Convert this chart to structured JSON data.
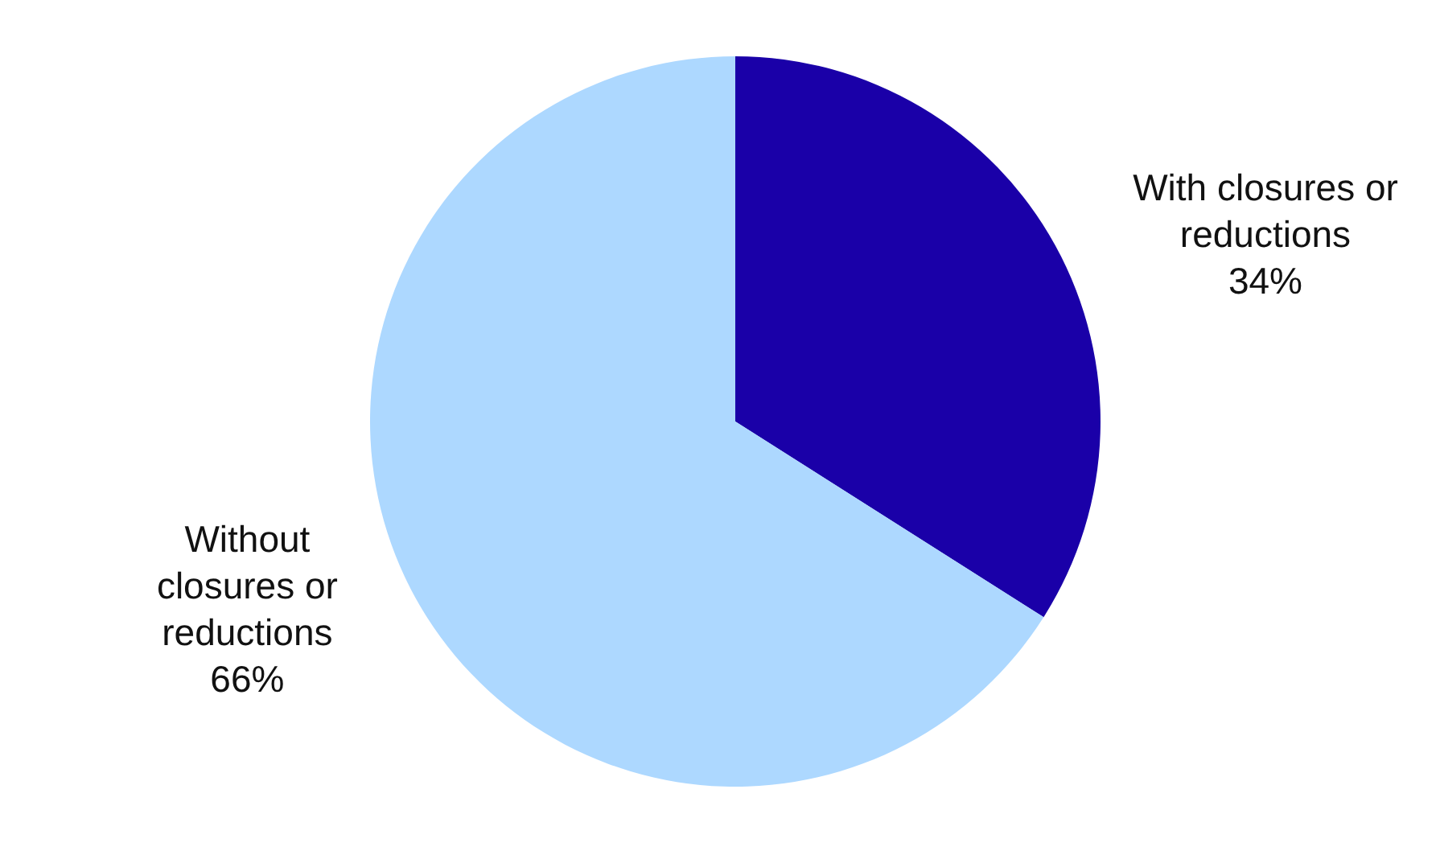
{
  "chart_data": {
    "type": "pie",
    "categories": [
      "With closures or reductions",
      "Without closures or reductions"
    ],
    "values": [
      34,
      66
    ],
    "colors": [
      "#1a00a8",
      "#add8ff"
    ],
    "legend": false,
    "value_labels": [
      "34%",
      "66%"
    ]
  }
}
